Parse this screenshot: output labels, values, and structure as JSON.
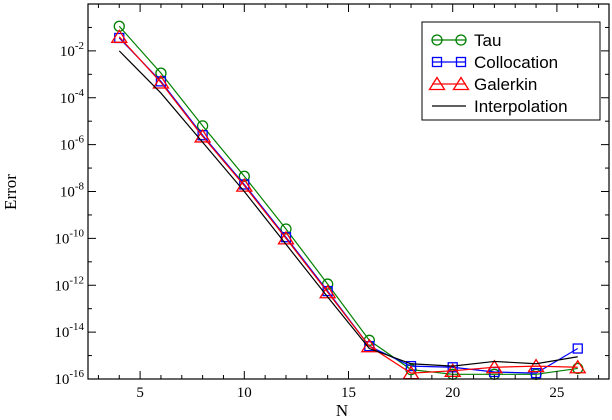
{
  "chart_data": {
    "type": "line",
    "xlabel": "N",
    "ylabel": "Error",
    "xlim": [
      2.5,
      27.5
    ],
    "ylim_log10": [
      -16,
      0
    ],
    "yscale": "log",
    "x_ticks": [
      5,
      10,
      15,
      20,
      25
    ],
    "y_ticks": [
      {
        "base": "10",
        "exp": "-2",
        "value": -2
      },
      {
        "base": "10",
        "exp": "-4",
        "value": -4
      },
      {
        "base": "10",
        "exp": "-6",
        "value": -6
      },
      {
        "base": "10",
        "exp": "-8",
        "value": -8
      },
      {
        "base": "10",
        "exp": "-10",
        "value": -10
      },
      {
        "base": "10",
        "exp": "-12",
        "value": -12
      },
      {
        "base": "10",
        "exp": "-14",
        "value": -14
      },
      {
        "base": "10",
        "exp": "-16",
        "value": -16
      }
    ],
    "grid": false,
    "legend_position": "top-right",
    "x": [
      4,
      6,
      8,
      10,
      12,
      14,
      16,
      18,
      20,
      22,
      24,
      26
    ],
    "series": [
      {
        "name": "Tau",
        "color": "#008000",
        "marker": "circle",
        "log10_values": [
          -0.95,
          -2.95,
          -5.2,
          -7.35,
          -9.6,
          -11.95,
          -14.35,
          -15.6,
          -15.8,
          -15.8,
          -15.8,
          -15.55
        ]
      },
      {
        "name": "Collocation",
        "color": "#0000ff",
        "marker": "square",
        "log10_values": [
          -1.45,
          -3.3,
          -5.6,
          -7.7,
          -9.95,
          -12.25,
          -14.6,
          -15.45,
          -15.5,
          -15.7,
          -15.75,
          -14.7
        ]
      },
      {
        "name": "Galerkin",
        "color": "#ff0000",
        "marker": "triangle",
        "log10_values": [
          -1.4,
          -3.35,
          -5.65,
          -7.75,
          -10.0,
          -12.3,
          -14.6,
          -15.75,
          -15.65,
          -15.5,
          -15.45,
          -15.5
        ]
      },
      {
        "name": "Interpolation",
        "color": "#000000",
        "marker": "none",
        "log10_values": [
          -2.0,
          -3.8,
          -5.9,
          -8.0,
          -10.25,
          -12.5,
          -14.7,
          -15.35,
          -15.45,
          -15.25,
          -15.35,
          -15.05
        ]
      }
    ]
  }
}
